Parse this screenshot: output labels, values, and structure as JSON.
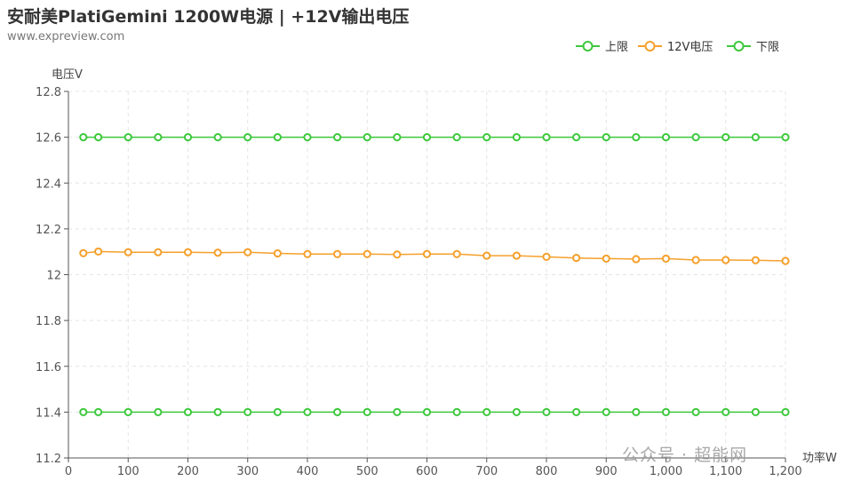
{
  "title": "安耐美PlatiGemini 1200W电源 | +12V输出电压",
  "subtitle": "www.expreview.com",
  "watermark": "公众号 · 超能网",
  "chart_data": {
    "type": "line",
    "xlabel": "功率W",
    "ylabel": "电压V",
    "xlim": [
      0,
      1200
    ],
    "ylim": [
      11.2,
      12.8
    ],
    "x_ticks": [
      0,
      100,
      200,
      300,
      400,
      500,
      600,
      700,
      800,
      900,
      1000,
      1100,
      1200
    ],
    "x_tick_labels": [
      "0",
      "100",
      "200",
      "300",
      "400",
      "500",
      "600",
      "700",
      "800",
      "900",
      "1,000",
      "1,100",
      "1,200"
    ],
    "y_ticks": [
      11.2,
      11.4,
      11.6,
      11.8,
      12,
      12.2,
      12.4,
      12.6,
      12.8
    ],
    "y_tick_labels": [
      "11.2",
      "11.4",
      "11.6",
      "11.8",
      "12",
      "12.2",
      "12.4",
      "12.6",
      "12.8"
    ],
    "grid": true,
    "legend_position": "top-right",
    "x": [
      25,
      50,
      100,
      150,
      200,
      250,
      300,
      350,
      400,
      450,
      500,
      550,
      600,
      650,
      700,
      750,
      800,
      850,
      900,
      950,
      1000,
      1050,
      1100,
      1150,
      1200
    ],
    "series": [
      {
        "name": "上限",
        "color": "#3cc83c",
        "values": [
          12.6,
          12.6,
          12.6,
          12.6,
          12.6,
          12.6,
          12.6,
          12.6,
          12.6,
          12.6,
          12.6,
          12.6,
          12.6,
          12.6,
          12.6,
          12.6,
          12.6,
          12.6,
          12.6,
          12.6,
          12.6,
          12.6,
          12.6,
          12.6,
          12.6
        ]
      },
      {
        "name": "12V电压",
        "color": "#f5a02c",
        "values": [
          12.094,
          12.101,
          12.098,
          12.098,
          12.098,
          12.096,
          12.098,
          12.093,
          12.09,
          12.09,
          12.09,
          12.088,
          12.09,
          12.09,
          12.083,
          12.083,
          12.078,
          12.073,
          12.07,
          12.068,
          12.07,
          12.064,
          12.064,
          12.063,
          12.06
        ]
      },
      {
        "name": "下限",
        "color": "#3cc83c",
        "values": [
          11.4,
          11.4,
          11.4,
          11.4,
          11.4,
          11.4,
          11.4,
          11.4,
          11.4,
          11.4,
          11.4,
          11.4,
          11.4,
          11.4,
          11.4,
          11.4,
          11.4,
          11.4,
          11.4,
          11.4,
          11.4,
          11.4,
          11.4,
          11.4,
          11.4
        ]
      }
    ]
  }
}
